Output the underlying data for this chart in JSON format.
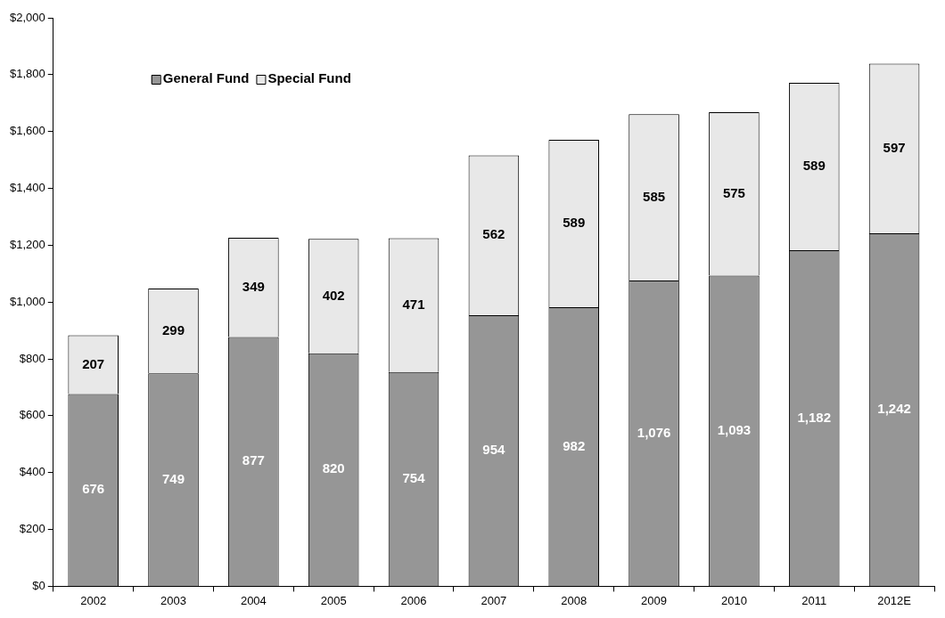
{
  "chart_data": {
    "type": "bar",
    "stacked": true,
    "categories": [
      "2002",
      "2003",
      "2004",
      "2005",
      "2006",
      "2007",
      "2008",
      "2009",
      "2010",
      "2011",
      "2012E"
    ],
    "series": [
      {
        "name": "General Fund",
        "color": "#969696",
        "values": [
          676,
          749,
          877,
          820,
          754,
          954,
          982,
          1076,
          1093,
          1182,
          1242
        ],
        "value_labels": [
          "676",
          "749",
          "877",
          "820",
          "754",
          "954",
          "982",
          "1,076",
          "1,093",
          "1,182",
          "1,242"
        ]
      },
      {
        "name": "Special Fund",
        "color": "#e8e8e8",
        "values": [
          207,
          299,
          349,
          402,
          471,
          562,
          589,
          585,
          575,
          589,
          597
        ],
        "value_labels": [
          "207",
          "299",
          "349",
          "402",
          "471",
          "562",
          "589",
          "585",
          "575",
          "589",
          "597"
        ]
      }
    ],
    "ylim": [
      0,
      2000
    ],
    "yticks": [
      {
        "value": 0,
        "label": "$0"
      },
      {
        "value": 200,
        "label": "$200"
      },
      {
        "value": 400,
        "label": "$400"
      },
      {
        "value": 600,
        "label": "$600"
      },
      {
        "value": 800,
        "label": "$800"
      },
      {
        "value": 1000,
        "label": "$1,000"
      },
      {
        "value": 1200,
        "label": "$1,200"
      },
      {
        "value": 1400,
        "label": "$1,400"
      },
      {
        "value": 1600,
        "label": "$1,600"
      },
      {
        "value": 1800,
        "label": "$1,800"
      },
      {
        "value": 2000,
        "label": "$2,000"
      }
    ],
    "grid": false,
    "legend": "top left"
  }
}
